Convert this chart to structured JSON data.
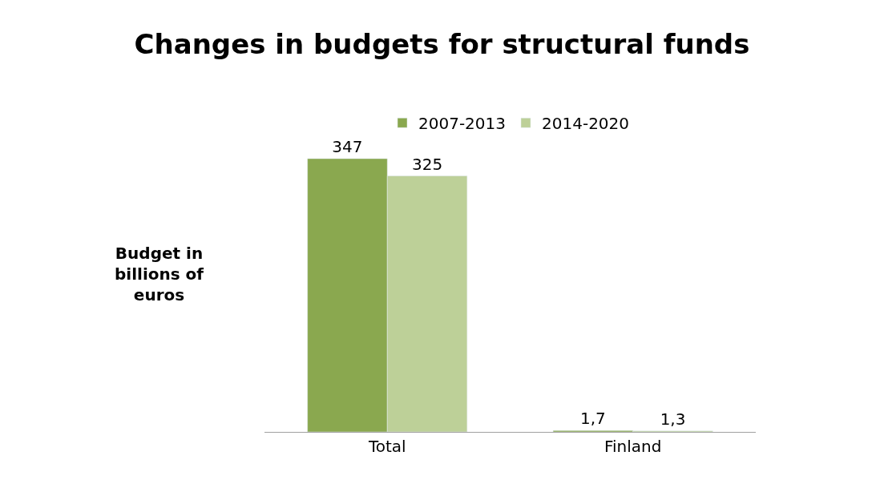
{
  "chart_data": {
    "type": "bar",
    "title": "Changes in budgets for structural funds",
    "ylabel": "Budget in billions of euros",
    "categories": [
      "Total",
      "Finland"
    ],
    "series": [
      {
        "name": "2007-2013",
        "color": "#8aa84f",
        "values": [
          347,
          1.7
        ],
        "value_labels": [
          "347",
          "1,7"
        ]
      },
      {
        "name": "2014-2020",
        "color": "#bdd098",
        "values": [
          325,
          1.3
        ],
        "value_labels": [
          "325",
          "1,3"
        ]
      }
    ],
    "legend": "top",
    "tick_labels": "x"
  }
}
